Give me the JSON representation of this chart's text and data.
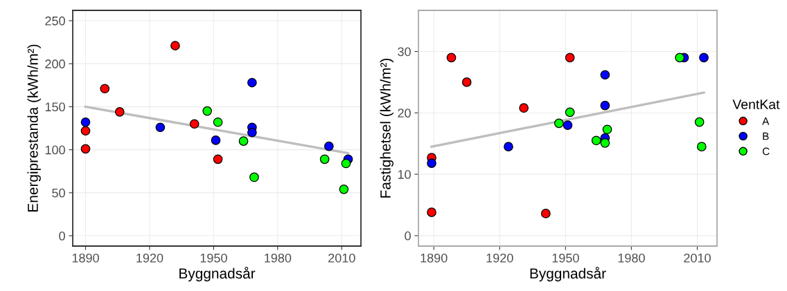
{
  "chart_data": [
    {
      "type": "scatter",
      "xlabel": "Byggnadsår",
      "ylabel": "Energiprestanda (kWh/m²)",
      "xlim": [
        1884,
        2019
      ],
      "ylim": [
        -12,
        262
      ],
      "xticks": [
        1890,
        1920,
        1950,
        1980,
        2010
      ],
      "yticks": [
        0,
        50,
        100,
        150,
        200,
        250
      ],
      "grid": true,
      "legend": false,
      "series": [
        {
          "marker": "circle",
          "color": "#ff0000",
          "x": [
            1890,
            1890,
            1899,
            1906,
            1932,
            1941,
            1952
          ],
          "values": [
            122,
            101,
            171,
            144,
            221,
            130,
            89
          ]
        },
        {
          "marker": "circle",
          "color": "#0000ff",
          "x": [
            1890,
            1925,
            1951,
            1968,
            1968,
            1968,
            2004,
            2013
          ],
          "values": [
            132,
            126,
            111,
            178,
            126,
            120,
            104,
            89
          ]
        },
        {
          "marker": "circle",
          "color": "#00ff00",
          "x": [
            1947,
            1952,
            1964,
            1969,
            2002,
            2012,
            2011
          ],
          "values": [
            145,
            132,
            110,
            68,
            89,
            84,
            54
          ]
        },
        {
          "type": "line",
          "marker": "none",
          "color": "#bebebe",
          "x": [
            1890,
            2013
          ],
          "values": [
            150,
            96
          ]
        }
      ]
    },
    {
      "type": "scatter",
      "xlabel": "Byggnadsår",
      "ylabel": "Fastighetsel (kWh/m²)",
      "legend_title": "VentKat",
      "xlim": [
        1883,
        2019
      ],
      "ylim": [
        -1.7,
        36.7
      ],
      "xticks": [
        1890,
        1920,
        1950,
        1980,
        2010
      ],
      "yticks": [
        0,
        10,
        20,
        30
      ],
      "grid": true,
      "legend": "right",
      "series": [
        {
          "name": "A",
          "marker": "circle",
          "color": "#ff0000",
          "x": [
            1898,
            1905,
            1931,
            1952,
            1889,
            1889,
            1941
          ],
          "values": [
            29,
            25,
            20.8,
            29,
            12.7,
            3.8,
            3.6
          ]
        },
        {
          "name": "B",
          "marker": "circle",
          "color": "#0000ff",
          "x": [
            1889,
            1924,
            1951,
            1968,
            1968,
            1968,
            2004,
            2013
          ],
          "values": [
            11.8,
            14.5,
            18.0,
            26.2,
            21.2,
            15.9,
            29,
            29
          ]
        },
        {
          "name": "C",
          "marker": "circle",
          "color": "#00ff00",
          "x": [
            1947,
            1952,
            1964,
            1968,
            1969,
            2002,
            2011,
            2012
          ],
          "values": [
            18.3,
            20.1,
            15.5,
            15.1,
            17.3,
            29,
            18.5,
            14.5
          ]
        },
        {
          "type": "line",
          "marker": "none",
          "color": "#bebebe",
          "x": [
            1889,
            2013
          ],
          "values": [
            14.5,
            23.3
          ]
        }
      ]
    }
  ]
}
